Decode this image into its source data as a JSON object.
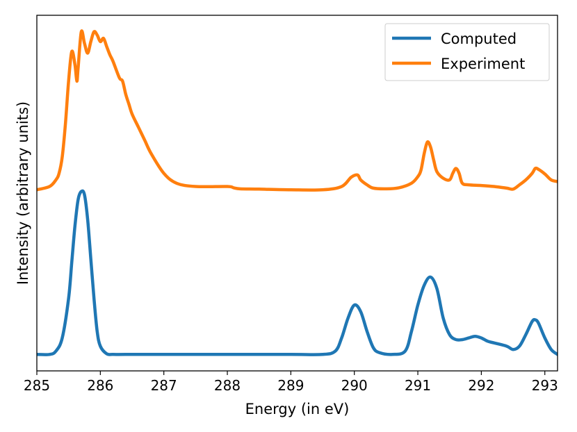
{
  "chart_data": {
    "type": "line",
    "title": "",
    "xlabel": "Energy (in eV)",
    "ylabel": "Intensity (arbitrary units)",
    "xlim": [
      285,
      293.2
    ],
    "ylim": [
      0,
      1.08
    ],
    "xticks": [
      "285",
      "286",
      "287",
      "288",
      "289",
      "290",
      "291",
      "292",
      "293"
    ],
    "yticks_visible": false,
    "grid": false,
    "legend_position": "top-right",
    "series": [
      {
        "name": "Computed",
        "color": "#1f77b4",
        "x": [
          285.0,
          285.2,
          285.3,
          285.4,
          285.5,
          285.55,
          285.6,
          285.65,
          285.7,
          285.75,
          285.8,
          285.85,
          285.9,
          285.95,
          286.0,
          286.1,
          286.2,
          286.4,
          287.0,
          288.0,
          289.0,
          289.5,
          289.7,
          289.8,
          289.9,
          290.0,
          290.1,
          290.2,
          290.3,
          290.4,
          290.6,
          290.8,
          290.9,
          291.0,
          291.1,
          291.2,
          291.3,
          291.4,
          291.5,
          291.6,
          291.7,
          291.8,
          291.9,
          292.0,
          292.1,
          292.2,
          292.4,
          292.5,
          292.6,
          292.7,
          292.8,
          292.85,
          292.9,
          293.0,
          293.1,
          293.2
        ],
        "y": [
          0.05,
          0.05,
          0.06,
          0.1,
          0.22,
          0.33,
          0.44,
          0.52,
          0.545,
          0.535,
          0.46,
          0.34,
          0.22,
          0.12,
          0.075,
          0.052,
          0.05,
          0.05,
          0.05,
          0.05,
          0.05,
          0.05,
          0.06,
          0.1,
          0.16,
          0.2,
          0.18,
          0.12,
          0.07,
          0.055,
          0.05,
          0.06,
          0.12,
          0.2,
          0.26,
          0.285,
          0.25,
          0.16,
          0.11,
          0.095,
          0.095,
          0.1,
          0.105,
          0.1,
          0.09,
          0.085,
          0.075,
          0.065,
          0.075,
          0.11,
          0.15,
          0.155,
          0.145,
          0.1,
          0.065,
          0.05
        ]
      },
      {
        "name": "Experiment",
        "color": "#ff7f0e",
        "x": [
          285.0,
          285.2,
          285.3,
          285.35,
          285.4,
          285.45,
          285.5,
          285.55,
          285.6,
          285.63,
          285.65,
          285.7,
          285.75,
          285.8,
          285.85,
          285.9,
          285.95,
          286.0,
          286.05,
          286.1,
          286.15,
          286.2,
          286.3,
          286.35,
          286.4,
          286.45,
          286.5,
          286.6,
          286.7,
          286.8,
          287.0,
          287.2,
          287.5,
          288.0,
          288.1,
          288.2,
          288.5,
          289.0,
          289.5,
          289.8,
          289.95,
          290.05,
          290.1,
          290.2,
          290.3,
          290.5,
          290.7,
          290.9,
          291.0,
          291.05,
          291.1,
          291.15,
          291.2,
          291.25,
          291.3,
          291.4,
          291.5,
          291.55,
          291.6,
          291.65,
          291.7,
          291.8,
          292.0,
          292.2,
          292.4,
          292.5,
          292.6,
          292.7,
          292.8,
          292.85,
          292.9,
          293.0,
          293.1,
          293.2
        ],
        "y": [
          0.55,
          0.56,
          0.58,
          0.6,
          0.65,
          0.75,
          0.88,
          0.97,
          0.93,
          0.88,
          0.92,
          1.03,
          0.995,
          0.965,
          1.0,
          1.03,
          1.02,
          1.0,
          1.01,
          0.985,
          0.96,
          0.94,
          0.89,
          0.88,
          0.84,
          0.81,
          0.78,
          0.74,
          0.7,
          0.66,
          0.6,
          0.57,
          0.56,
          0.56,
          0.556,
          0.553,
          0.552,
          0.55,
          0.55,
          0.56,
          0.588,
          0.595,
          0.58,
          0.565,
          0.555,
          0.553,
          0.556,
          0.57,
          0.59,
          0.61,
          0.66,
          0.695,
          0.68,
          0.64,
          0.605,
          0.585,
          0.58,
          0.6,
          0.615,
          0.6,
          0.57,
          0.565,
          0.563,
          0.56,
          0.555,
          0.552,
          0.565,
          0.58,
          0.6,
          0.615,
          0.612,
          0.598,
          0.58,
          0.575
        ]
      }
    ]
  }
}
